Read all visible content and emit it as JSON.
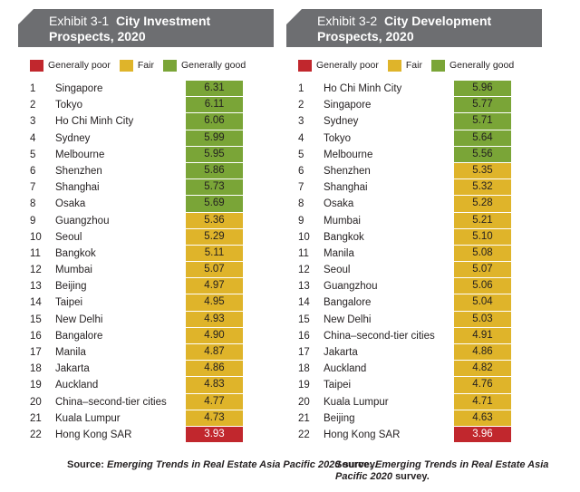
{
  "legend": {
    "poor": "Generally poor",
    "fair": "Fair",
    "good": "Generally good"
  },
  "colors": {
    "poor": "#c1272d",
    "fair": "#dfb42a",
    "good": "#7aa537",
    "header": "#6d6e71"
  },
  "chart_data": [
    {
      "type": "table",
      "exhibit": "Exhibit 3-1",
      "title_line1": "City Investment",
      "title_line2": "Prospects, 2020",
      "rows": [
        {
          "rank": "1",
          "city": "Singapore",
          "value": "6.31",
          "rating": "good"
        },
        {
          "rank": "2",
          "city": "Tokyo",
          "value": "6.11",
          "rating": "good"
        },
        {
          "rank": "3",
          "city": "Ho Chi Minh City",
          "value": "6.06",
          "rating": "good"
        },
        {
          "rank": "4",
          "city": "Sydney",
          "value": "5.99",
          "rating": "good"
        },
        {
          "rank": "5",
          "city": "Melbourne",
          "value": "5.95",
          "rating": "good"
        },
        {
          "rank": "6",
          "city": "Shenzhen",
          "value": "5.86",
          "rating": "good"
        },
        {
          "rank": "7",
          "city": "Shanghai",
          "value": "5.73",
          "rating": "good"
        },
        {
          "rank": "8",
          "city": "Osaka",
          "value": "5.69",
          "rating": "good"
        },
        {
          "rank": "9",
          "city": "Guangzhou",
          "value": "5.36",
          "rating": "fair"
        },
        {
          "rank": "10",
          "city": "Seoul",
          "value": "5.29",
          "rating": "fair"
        },
        {
          "rank": "11",
          "city": "Bangkok",
          "value": "5.11",
          "rating": "fair"
        },
        {
          "rank": "12",
          "city": "Mumbai",
          "value": "5.07",
          "rating": "fair"
        },
        {
          "rank": "13",
          "city": "Beijing",
          "value": "4.97",
          "rating": "fair"
        },
        {
          "rank": "14",
          "city": "Taipei",
          "value": "4.95",
          "rating": "fair"
        },
        {
          "rank": "15",
          "city": "New Delhi",
          "value": "4.93",
          "rating": "fair"
        },
        {
          "rank": "16",
          "city": "Bangalore",
          "value": "4.90",
          "rating": "fair"
        },
        {
          "rank": "17",
          "city": "Manila",
          "value": "4.87",
          "rating": "fair"
        },
        {
          "rank": "18",
          "city": "Jakarta",
          "value": "4.86",
          "rating": "fair"
        },
        {
          "rank": "19",
          "city": "Auckland",
          "value": "4.83",
          "rating": "fair"
        },
        {
          "rank": "20",
          "city": "China–second-tier cities",
          "value": "4.77",
          "rating": "fair"
        },
        {
          "rank": "21",
          "city": "Kuala Lumpur",
          "value": "4.73",
          "rating": "fair"
        },
        {
          "rank": "22",
          "city": "Hong Kong SAR",
          "value": "3.93",
          "rating": "poor"
        }
      ],
      "source_prefix": "Source:",
      "source_italic": "Emerging Trends in Real Estate Asia Pacific 2020",
      "source_suffix": "survey."
    },
    {
      "type": "table",
      "exhibit": "Exhibit 3-2",
      "title_line1": "City Development",
      "title_line2": "Prospects, 2020",
      "rows": [
        {
          "rank": "1",
          "city": "Ho Chi Minh City",
          "value": "5.96",
          "rating": "good"
        },
        {
          "rank": "2",
          "city": "Singapore",
          "value": "5.77",
          "rating": "good"
        },
        {
          "rank": "3",
          "city": "Sydney",
          "value": "5.71",
          "rating": "good"
        },
        {
          "rank": "4",
          "city": "Tokyo",
          "value": "5.64",
          "rating": "good"
        },
        {
          "rank": "5",
          "city": "Melbourne",
          "value": "5.56",
          "rating": "good"
        },
        {
          "rank": "6",
          "city": "Shenzhen",
          "value": "5.35",
          "rating": "fair"
        },
        {
          "rank": "7",
          "city": "Shanghai",
          "value": "5.32",
          "rating": "fair"
        },
        {
          "rank": "8",
          "city": "Osaka",
          "value": "5.28",
          "rating": "fair"
        },
        {
          "rank": "9",
          "city": "Mumbai",
          "value": "5.21",
          "rating": "fair"
        },
        {
          "rank": "10",
          "city": "Bangkok",
          "value": "5.10",
          "rating": "fair"
        },
        {
          "rank": "11",
          "city": "Manila",
          "value": "5.08",
          "rating": "fair"
        },
        {
          "rank": "12",
          "city": "Seoul",
          "value": "5.07",
          "rating": "fair"
        },
        {
          "rank": "13",
          "city": "Guangzhou",
          "value": "5.06",
          "rating": "fair"
        },
        {
          "rank": "14",
          "city": "Bangalore",
          "value": "5.04",
          "rating": "fair"
        },
        {
          "rank": "15",
          "city": "New Delhi",
          "value": "5.03",
          "rating": "fair"
        },
        {
          "rank": "16",
          "city": "China–second-tier cities",
          "value": "4.91",
          "rating": "fair"
        },
        {
          "rank": "17",
          "city": "Jakarta",
          "value": "4.86",
          "rating": "fair"
        },
        {
          "rank": "18",
          "city": "Auckland",
          "value": "4.82",
          "rating": "fair"
        },
        {
          "rank": "19",
          "city": "Taipei",
          "value": "4.76",
          "rating": "fair"
        },
        {
          "rank": "20",
          "city": "Kuala Lumpur",
          "value": "4.71",
          "rating": "fair"
        },
        {
          "rank": "21",
          "city": "Beijing",
          "value": "4.63",
          "rating": "fair"
        },
        {
          "rank": "22",
          "city": "Hong Kong SAR",
          "value": "3.96",
          "rating": "poor"
        }
      ],
      "source_prefix": "Source:",
      "source_italic": "Emerging Trends in Real Estate Asia Pacific 2020",
      "source_suffix": "survey."
    }
  ]
}
